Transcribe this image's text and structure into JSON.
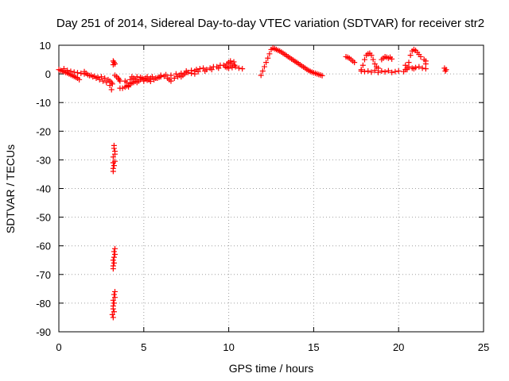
{
  "chart_data": {
    "type": "scatter",
    "title": "Day 251 of 2014, Sidereal Day-to-day VTEC variation (SDTVAR) for receiver str2",
    "xlabel": "GPS time / hours",
    "ylabel": "SDTVAR / TECUs",
    "xlim": [
      0,
      25
    ],
    "ylim": [
      -90,
      10
    ],
    "x_ticks": [
      0,
      5,
      10,
      15,
      20,
      25
    ],
    "y_ticks": [
      10,
      0,
      -10,
      -20,
      -30,
      -40,
      -50,
      -60,
      -70,
      -80,
      -90
    ],
    "grid": true,
    "marker": "+",
    "color": "#ff0000",
    "series": [
      {
        "name": "SDTVAR",
        "points": [
          [
            0.0,
            1.5
          ],
          [
            0.1,
            1.2
          ],
          [
            0.2,
            1.0
          ],
          [
            0.3,
            0.8
          ],
          [
            0.4,
            0.5
          ],
          [
            0.5,
            0.3
          ],
          [
            0.6,
            0.0
          ],
          [
            0.7,
            -0.3
          ],
          [
            0.8,
            -0.6
          ],
          [
            0.9,
            -0.9
          ],
          [
            1.0,
            -1.2
          ],
          [
            1.1,
            -1.5
          ],
          [
            1.2,
            -2.0
          ],
          [
            0.3,
            1.8
          ],
          [
            0.5,
            1.2
          ],
          [
            0.7,
            0.9
          ],
          [
            0.9,
            0.6
          ],
          [
            1.1,
            0.4
          ],
          [
            1.3,
            0.2
          ],
          [
            1.5,
            0.0
          ],
          [
            1.7,
            -0.3
          ],
          [
            1.9,
            -0.5
          ],
          [
            2.1,
            -0.8
          ],
          [
            2.3,
            -1.2
          ],
          [
            1.5,
            0.8
          ],
          [
            1.6,
            0.2
          ],
          [
            1.8,
            -0.6
          ],
          [
            2.0,
            -1.0
          ],
          [
            2.2,
            -1.5
          ],
          [
            2.4,
            -2.0
          ],
          [
            2.6,
            -2.5
          ],
          [
            2.8,
            -3.0
          ],
          [
            3.0,
            -4.0
          ],
          [
            3.1,
            -5.5
          ],
          [
            2.5,
            -1.0
          ],
          [
            2.7,
            -1.5
          ],
          [
            2.9,
            -2.0
          ],
          [
            3.0,
            -2.5
          ],
          [
            3.1,
            -3.0
          ],
          [
            3.15,
            -3.5
          ],
          [
            3.2,
            4.5
          ],
          [
            3.25,
            4.0
          ],
          [
            3.3,
            3.5
          ],
          [
            3.2,
            3.2
          ],
          [
            3.3,
            -0.5
          ],
          [
            3.4,
            -1.0
          ],
          [
            3.5,
            -1.5
          ],
          [
            3.55,
            -2.0
          ],
          [
            3.6,
            -2.5
          ],
          [
            3.6,
            -5.0
          ],
          [
            3.75,
            -5.0
          ],
          [
            3.9,
            -4.6
          ],
          [
            4.0,
            -4.2
          ],
          [
            4.1,
            -4.0
          ],
          [
            4.2,
            -3.5
          ],
          [
            4.3,
            -3.2
          ],
          [
            4.4,
            -3.0
          ],
          [
            4.5,
            -2.6
          ],
          [
            3.9,
            -2.5
          ],
          [
            4.0,
            -3.0
          ],
          [
            4.1,
            -4.5
          ],
          [
            4.2,
            -2.0
          ],
          [
            4.3,
            -1.0
          ],
          [
            4.4,
            -1.5
          ],
          [
            4.5,
            -2.0
          ],
          [
            4.6,
            -3.0
          ],
          [
            4.7,
            -2.5
          ],
          [
            4.8,
            -2.0
          ],
          [
            4.9,
            -1.5
          ],
          [
            5.0,
            -2.5
          ],
          [
            5.1,
            -1.5
          ],
          [
            5.2,
            -1.0
          ],
          [
            5.3,
            -2.0
          ],
          [
            5.4,
            -1.5
          ],
          [
            5.5,
            -1.0
          ],
          [
            5.6,
            -2.0
          ],
          [
            5.7,
            -1.5
          ],
          [
            4.6,
            -1.0
          ],
          [
            4.8,
            -1.2
          ],
          [
            5.0,
            -1.8
          ],
          [
            5.2,
            -2.2
          ],
          [
            5.4,
            -2.6
          ],
          [
            5.8,
            -1.5
          ],
          [
            5.9,
            -1.2
          ],
          [
            6.0,
            -1.0
          ],
          [
            6.2,
            -0.8
          ],
          [
            6.4,
            -1.5
          ],
          [
            6.5,
            -2.0
          ],
          [
            6.6,
            -2.5
          ],
          [
            6.8,
            -1.5
          ],
          [
            7.0,
            -1.0
          ],
          [
            6.0,
            -0.5
          ],
          [
            6.3,
            -0.3
          ],
          [
            6.6,
            -0.5
          ],
          [
            6.9,
            0.0
          ],
          [
            7.2,
            0.2
          ],
          [
            7.1,
            -0.5
          ],
          [
            7.2,
            -1.0
          ],
          [
            7.3,
            -0.5
          ],
          [
            7.4,
            0.0
          ],
          [
            7.5,
            0.5
          ],
          [
            7.6,
            0.5
          ],
          [
            7.8,
            0.2
          ],
          [
            8.0,
            0.0
          ],
          [
            7.5,
            1.0
          ],
          [
            7.8,
            1.2
          ],
          [
            8.0,
            1.0
          ],
          [
            8.1,
            1.5
          ],
          [
            8.3,
            1.8
          ],
          [
            8.5,
            2.0
          ],
          [
            8.7,
            1.5
          ],
          [
            8.9,
            2.0
          ],
          [
            9.1,
            2.5
          ],
          [
            9.3,
            2.5
          ],
          [
            9.5,
            3.0
          ],
          [
            9.7,
            3.0
          ],
          [
            9.9,
            3.5
          ],
          [
            8.2,
            0.8
          ],
          [
            8.6,
            1.0
          ],
          [
            9.0,
            1.5
          ],
          [
            9.4,
            2.0
          ],
          [
            9.8,
            2.5
          ],
          [
            10.0,
            4.0
          ],
          [
            10.1,
            4.5
          ],
          [
            10.2,
            3.5
          ],
          [
            10.3,
            4.2
          ],
          [
            10.35,
            3.0
          ],
          [
            10.0,
            2.0
          ],
          [
            10.2,
            2.2
          ],
          [
            10.4,
            2.5
          ],
          [
            10.6,
            2.0
          ],
          [
            10.8,
            1.8
          ],
          [
            9.9,
            2.2
          ],
          [
            10.1,
            2.8
          ],
          [
            11.9,
            -0.5
          ],
          [
            12.0,
            1.0
          ],
          [
            12.1,
            2.5
          ],
          [
            12.2,
            4.0
          ],
          [
            12.3,
            5.5
          ],
          [
            12.4,
            7.0
          ],
          [
            12.5,
            8.5
          ],
          [
            12.6,
            9.0
          ],
          [
            12.7,
            8.8
          ],
          [
            12.8,
            8.5
          ],
          [
            12.9,
            8.2
          ],
          [
            13.0,
            8.0
          ],
          [
            13.1,
            7.6
          ],
          [
            13.2,
            7.2
          ],
          [
            13.3,
            6.8
          ],
          [
            13.4,
            6.4
          ],
          [
            13.5,
            6.0
          ],
          [
            13.6,
            5.6
          ],
          [
            13.7,
            5.2
          ],
          [
            13.8,
            4.8
          ],
          [
            13.9,
            4.4
          ],
          [
            14.0,
            4.0
          ],
          [
            14.1,
            3.6
          ],
          [
            14.2,
            3.2
          ],
          [
            14.3,
            2.8
          ],
          [
            14.4,
            2.4
          ],
          [
            14.5,
            2.0
          ],
          [
            14.6,
            1.6
          ],
          [
            14.7,
            1.2
          ],
          [
            14.8,
            0.9
          ],
          [
            14.9,
            0.6
          ],
          [
            15.0,
            0.4
          ],
          [
            15.1,
            0.2
          ],
          [
            15.2,
            0.0
          ],
          [
            15.3,
            -0.2
          ],
          [
            15.4,
            -0.4
          ],
          [
            15.5,
            -0.6
          ],
          [
            16.9,
            6.0
          ],
          [
            17.0,
            5.8
          ],
          [
            17.1,
            5.5
          ],
          [
            17.2,
            5.0
          ],
          [
            17.3,
            4.5
          ],
          [
            17.4,
            4.0
          ],
          [
            17.8,
            1.5
          ],
          [
            17.9,
            3.0
          ],
          [
            18.0,
            5.0
          ],
          [
            18.1,
            6.5
          ],
          [
            18.2,
            7.0
          ],
          [
            18.3,
            7.2
          ],
          [
            18.4,
            6.5
          ],
          [
            18.5,
            5.0
          ],
          [
            18.6,
            3.5
          ],
          [
            18.7,
            2.5
          ],
          [
            18.8,
            2.0
          ],
          [
            17.8,
            1.0
          ],
          [
            18.0,
            0.8
          ],
          [
            18.2,
            1.0
          ],
          [
            18.4,
            0.6
          ],
          [
            18.6,
            1.2
          ],
          [
            18.8,
            0.5
          ],
          [
            19.0,
            1.0
          ],
          [
            19.2,
            0.7
          ],
          [
            19.4,
            1.1
          ],
          [
            19.6,
            0.5
          ],
          [
            19.8,
            0.8
          ],
          [
            20.0,
            1.0
          ],
          [
            19.0,
            5.0
          ],
          [
            19.1,
            5.5
          ],
          [
            19.2,
            6.0
          ],
          [
            19.3,
            5.8
          ],
          [
            19.4,
            5.5
          ],
          [
            19.5,
            5.8
          ],
          [
            19.6,
            5.2
          ],
          [
            20.3,
            0.8
          ],
          [
            20.4,
            1.5
          ],
          [
            20.5,
            2.0
          ],
          [
            20.6,
            4.0
          ],
          [
            20.7,
            6.5
          ],
          [
            20.8,
            8.0
          ],
          [
            20.9,
            8.5
          ],
          [
            21.0,
            8.2
          ],
          [
            21.1,
            7.5
          ],
          [
            21.2,
            6.8
          ],
          [
            21.3,
            6.0
          ],
          [
            20.4,
            3.0
          ],
          [
            20.6,
            2.5
          ],
          [
            20.8,
            2.0
          ],
          [
            21.0,
            2.2
          ],
          [
            21.2,
            2.5
          ],
          [
            21.4,
            2.0
          ],
          [
            21.6,
            1.8
          ],
          [
            20.5,
            1.5
          ],
          [
            20.9,
            1.8
          ],
          [
            21.5,
            5.0
          ],
          [
            21.6,
            4.5
          ],
          [
            21.6,
            3.5
          ],
          [
            22.7,
            2.0
          ],
          [
            22.8,
            1.5
          ],
          [
            22.75,
            1.0
          ],
          [
            3.25,
            -25.0
          ],
          [
            3.25,
            -26.0
          ],
          [
            3.3,
            -27.0
          ],
          [
            3.3,
            -28.0
          ],
          [
            3.2,
            -29.0
          ],
          [
            3.2,
            -31.0
          ],
          [
            3.25,
            -32.0
          ],
          [
            3.2,
            -33.0
          ],
          [
            3.2,
            -34.0
          ],
          [
            3.3,
            -30.5
          ],
          [
            3.3,
            -61.0
          ],
          [
            3.25,
            -62.0
          ],
          [
            3.3,
            -63.0
          ],
          [
            3.25,
            -64.0
          ],
          [
            3.2,
            -65.0
          ],
          [
            3.25,
            -66.0
          ],
          [
            3.2,
            -67.0
          ],
          [
            3.2,
            -68.0
          ],
          [
            3.3,
            -76.0
          ],
          [
            3.25,
            -77.0
          ],
          [
            3.3,
            -78.0
          ],
          [
            3.2,
            -79.0
          ],
          [
            3.25,
            -80.0
          ],
          [
            3.2,
            -81.0
          ],
          [
            3.2,
            -82.0
          ],
          [
            3.25,
            -83.0
          ],
          [
            3.15,
            -84.0
          ],
          [
            3.2,
            -85.0
          ]
        ]
      }
    ]
  }
}
